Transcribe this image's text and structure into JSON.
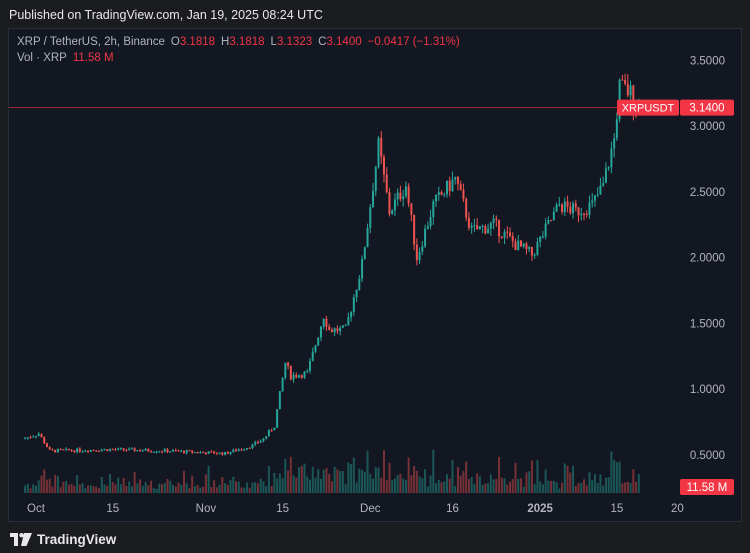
{
  "header": {
    "published": "Published on TradingView.com, Jan 19, 2025 08:24 UTC"
  },
  "legend": {
    "symbol": "XRP / TetherUS, 2h, Binance",
    "o_label": "O",
    "o_value": "3.1818",
    "h_label": "H",
    "h_value": "3.1818",
    "l_label": "L",
    "l_value": "3.1323",
    "c_label": "C",
    "c_value": "3.1400",
    "change": "−0.0417 (−1.31%)",
    "vol_label": "Vol · XRP",
    "vol_value": "11.58 M"
  },
  "price_tag": {
    "symbol": "XRPUSDT",
    "price": "3.1400",
    "volume": "11.58 M"
  },
  "footer": {
    "brand": "TradingView"
  },
  "colors": {
    "up": "#26a69a",
    "down": "#ef5350",
    "tag": "#f23645",
    "background": "#131722"
  },
  "chart_data": {
    "type": "candlestick",
    "symbol": "XRP / TetherUS",
    "interval": "2h",
    "exchange": "Binance",
    "y_ticks": [
      "3.5000",
      "3.0000",
      "2.5000",
      "2.0000",
      "1.5000",
      "1.0000",
      "0.5000"
    ],
    "y_tick_values": [
      3.5,
      3.0,
      2.5,
      2.0,
      1.5,
      1.0,
      0.5
    ],
    "x_ticks": [
      "Oct",
      "15",
      "Nov",
      "15",
      "Dec",
      "16",
      "2025",
      "15",
      "20"
    ],
    "last_price": 3.14,
    "price_path": [
      {
        "date": "2024-09-29",
        "price": 0.62
      },
      {
        "date": "2024-10-02",
        "price": 0.66
      },
      {
        "date": "2024-10-04",
        "price": 0.53
      },
      {
        "date": "2024-10-15",
        "price": 0.54
      },
      {
        "date": "2024-10-25",
        "price": 0.53
      },
      {
        "date": "2024-11-05",
        "price": 0.51
      },
      {
        "date": "2024-11-10",
        "price": 0.57
      },
      {
        "date": "2024-11-12",
        "price": 0.62
      },
      {
        "date": "2024-11-14",
        "price": 0.72
      },
      {
        "date": "2024-11-16",
        "price": 1.2
      },
      {
        "date": "2024-11-17",
        "price": 1.1
      },
      {
        "date": "2024-11-20",
        "price": 1.12
      },
      {
        "date": "2024-11-23",
        "price": 1.56
      },
      {
        "date": "2024-11-24",
        "price": 1.45
      },
      {
        "date": "2024-11-27",
        "price": 1.45
      },
      {
        "date": "2024-11-30",
        "price": 1.95
      },
      {
        "date": "2024-12-03",
        "price": 2.85
      },
      {
        "date": "2024-12-05",
        "price": 2.35
      },
      {
        "date": "2024-12-08",
        "price": 2.55
      },
      {
        "date": "2024-12-10",
        "price": 2.0
      },
      {
        "date": "2024-12-13",
        "price": 2.4
      },
      {
        "date": "2024-12-17",
        "price": 2.6
      },
      {
        "date": "2024-12-20",
        "price": 2.2
      },
      {
        "date": "2024-12-24",
        "price": 2.25
      },
      {
        "date": "2024-12-28",
        "price": 2.1
      },
      {
        "date": "2024-12-31",
        "price": 2.02
      },
      {
        "date": "2025-01-05",
        "price": 2.4
      },
      {
        "date": "2025-01-08",
        "price": 2.35
      },
      {
        "date": "2025-01-11",
        "price": 2.4
      },
      {
        "date": "2025-01-13",
        "price": 2.55
      },
      {
        "date": "2025-01-15",
        "price": 2.9
      },
      {
        "date": "2025-01-16",
        "price": 3.3
      },
      {
        "date": "2025-01-18",
        "price": 3.25
      },
      {
        "date": "2025-01-19",
        "price": 3.14
      }
    ]
  }
}
